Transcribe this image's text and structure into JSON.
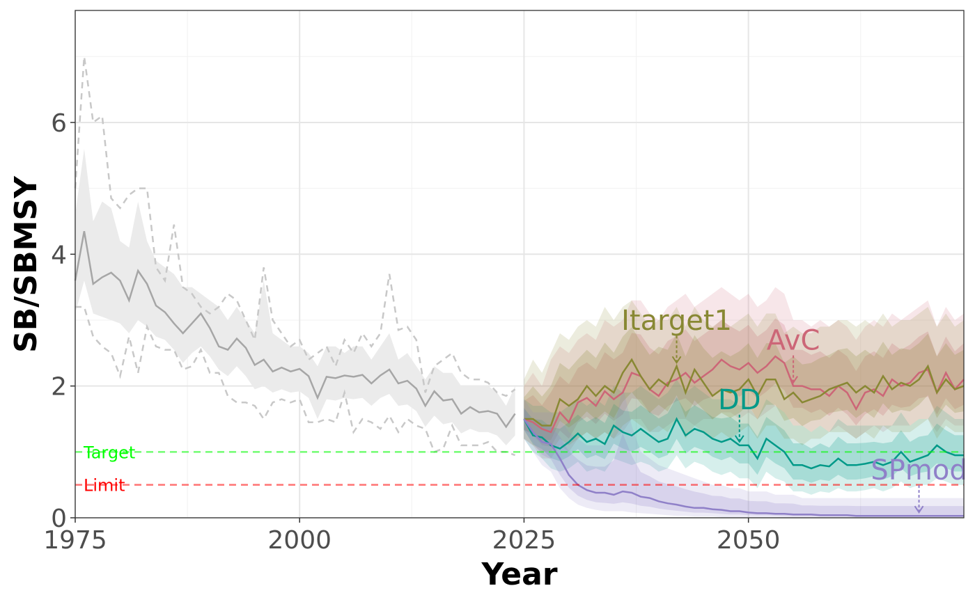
{
  "chart_data": {
    "type": "line",
    "xlabel": "Year",
    "ylabel": "SB/SBMSY",
    "xlim": [
      1975,
      2074
    ],
    "ylim": [
      0,
      7.7
    ],
    "x_ticks": [
      1975,
      2000,
      2025,
      2050
    ],
    "y_ticks": [
      0,
      2,
      4,
      6
    ],
    "grid": true,
    "legend": "none",
    "reference_lines": [
      {
        "name": "Target",
        "y": 1.0,
        "color": "#00ff00"
      },
      {
        "name": "Limit",
        "y": 0.5,
        "color": "#ff0000"
      }
    ],
    "historical": {
      "color": "#a6a6a6",
      "x": [
        1975,
        1976,
        1977,
        1978,
        1979,
        1980,
        1981,
        1982,
        1983,
        1984,
        1985,
        1986,
        1987,
        1988,
        1989,
        1990,
        1991,
        1992,
        1993,
        1994,
        1995,
        1996,
        1997,
        1998,
        1999,
        2000,
        2001,
        2002,
        2003,
        2004,
        2005,
        2006,
        2007,
        2008,
        2009,
        2010,
        2011,
        2012,
        2013,
        2014,
        2015,
        2016,
        2017,
        2018,
        2019,
        2020,
        2021,
        2022,
        2023,
        2024
      ],
      "median": [
        3.6,
        4.35,
        3.55,
        3.65,
        3.72,
        3.6,
        3.3,
        3.75,
        3.55,
        3.22,
        3.12,
        2.95,
        2.8,
        2.95,
        3.1,
        2.88,
        2.6,
        2.55,
        2.72,
        2.58,
        2.32,
        2.4,
        2.22,
        2.28,
        2.22,
        2.26,
        2.15,
        1.82,
        2.14,
        2.12,
        2.16,
        2.14,
        2.17,
        2.04,
        2.16,
        2.25,
        2.04,
        2.08,
        1.96,
        1.7,
        1.92,
        1.78,
        1.8,
        1.58,
        1.68,
        1.6,
        1.62,
        1.58,
        1.38,
        1.58
      ],
      "upper": [
        4.6,
        5.6,
        4.5,
        4.8,
        4.7,
        4.2,
        4.1,
        4.8,
        4.2,
        3.9,
        3.8,
        3.7,
        3.5,
        3.5,
        3.4,
        3.3,
        3.2,
        3.0,
        3.2,
        3.0,
        2.8,
        3.6,
        2.8,
        2.7,
        2.6,
        2.6,
        2.5,
        2.3,
        2.6,
        2.6,
        2.5,
        2.6,
        2.6,
        2.4,
        2.6,
        2.8,
        2.4,
        2.5,
        2.3,
        2.1,
        2.3,
        2.2,
        2.2,
        2.0,
        2.0,
        2.0,
        2.0,
        1.9,
        1.7,
        2.0
      ],
      "lower": [
        3.1,
        3.6,
        3.1,
        3.05,
        3.0,
        2.95,
        2.8,
        3.0,
        2.9,
        2.75,
        2.7,
        2.55,
        2.35,
        2.5,
        2.6,
        2.45,
        2.25,
        2.15,
        2.3,
        2.15,
        1.95,
        2.0,
        1.9,
        1.95,
        1.9,
        1.92,
        1.82,
        1.5,
        1.8,
        1.78,
        1.82,
        1.8,
        1.82,
        1.7,
        1.82,
        1.88,
        1.7,
        1.72,
        1.62,
        1.38,
        1.55,
        1.42,
        1.45,
        1.28,
        1.35,
        1.3,
        1.3,
        1.25,
        1.1,
        1.25
      ],
      "trace_upper": [
        5.0,
        7.0,
        6.0,
        6.1,
        4.85,
        4.7,
        4.9,
        5.0,
        5.0,
        3.8,
        3.6,
        4.45,
        3.5,
        3.4,
        3.2,
        3.1,
        3.2,
        3.4,
        3.3,
        3.0,
        2.7,
        3.8,
        3.0,
        2.8,
        2.6,
        2.7,
        2.4,
        2.5,
        2.6,
        2.3,
        2.7,
        2.5,
        2.8,
        2.6,
        2.8,
        3.7,
        2.85,
        2.9,
        2.7,
        1.9,
        2.3,
        2.4,
        2.5,
        2.2,
        2.1,
        2.1,
        2.05,
        1.9,
        1.85,
        1.95
      ],
      "trace_lower": [
        3.2,
        3.2,
        2.75,
        2.6,
        2.5,
        2.15,
        2.75,
        2.2,
        2.9,
        2.6,
        2.55,
        2.55,
        2.25,
        2.3,
        2.55,
        2.2,
        2.2,
        1.85,
        1.75,
        1.75,
        1.7,
        1.5,
        1.75,
        1.8,
        1.75,
        1.8,
        1.45,
        1.45,
        1.5,
        1.45,
        1.9,
        1.3,
        1.5,
        1.45,
        1.35,
        1.55,
        1.3,
        1.5,
        1.4,
        1.35,
        1.0,
        1.05,
        1.4,
        1.1,
        1.1,
        1.1,
        1.15,
        1.0,
        1.0,
        0.95
      ]
    },
    "series": [
      {
        "name": "AvC",
        "color": "#cc6677",
        "label_at": 2055,
        "x": [
          2025,
          2026,
          2027,
          2028,
          2029,
          2030,
          2031,
          2032,
          2033,
          2034,
          2035,
          2036,
          2037,
          2038,
          2039,
          2040,
          2041,
          2042,
          2043,
          2044,
          2045,
          2046,
          2047,
          2048,
          2049,
          2050,
          2051,
          2052,
          2053,
          2054,
          2055,
          2056,
          2057,
          2058,
          2059,
          2060,
          2061,
          2062,
          2063,
          2064,
          2065,
          2066,
          2067,
          2068,
          2069,
          2070,
          2071,
          2072,
          2073,
          2074
        ],
        "median": [
          1.5,
          1.45,
          1.35,
          1.3,
          1.6,
          1.45,
          1.75,
          1.82,
          1.7,
          1.92,
          1.8,
          1.9,
          2.2,
          2.15,
          1.95,
          1.85,
          2.05,
          2.1,
          2.2,
          2.05,
          2.15,
          2.25,
          2.4,
          2.3,
          2.25,
          2.35,
          2.2,
          2.3,
          2.45,
          2.35,
          2.0,
          2.0,
          1.95,
          1.95,
          1.85,
          2.0,
          1.9,
          1.65,
          1.9,
          1.95,
          1.85,
          2.1,
          2.0,
          2.05,
          2.2,
          2.25,
          1.9,
          2.2,
          1.95,
          2.1
        ],
        "upper": [
          2.0,
          2.2,
          2.0,
          2.4,
          2.6,
          2.5,
          2.7,
          2.8,
          2.7,
          3.0,
          2.9,
          3.0,
          3.3,
          3.3,
          3.1,
          3.0,
          3.2,
          3.3,
          3.4,
          3.2,
          3.3,
          3.4,
          3.5,
          3.4,
          3.3,
          3.4,
          3.2,
          3.3,
          3.5,
          3.4,
          3.0,
          3.0,
          2.9,
          3.0,
          2.9,
          3.0,
          2.9,
          2.7,
          2.9,
          3.0,
          2.9,
          3.1,
          3.0,
          3.1,
          3.2,
          3.3,
          2.9,
          3.2,
          3.0,
          3.1
        ],
        "lower": [
          1.2,
          1.1,
          0.9,
          0.9,
          1.1,
          1.0,
          1.2,
          1.3,
          1.2,
          1.3,
          1.2,
          1.3,
          1.5,
          1.5,
          1.3,
          1.3,
          1.4,
          1.5,
          1.5,
          1.4,
          1.5,
          1.5,
          1.6,
          1.6,
          1.5,
          1.6,
          1.5,
          1.6,
          1.7,
          1.6,
          1.4,
          1.4,
          1.3,
          1.4,
          1.3,
          1.4,
          1.3,
          1.2,
          1.3,
          1.4,
          1.3,
          1.4,
          1.4,
          1.4,
          1.5,
          1.5,
          1.3,
          1.5,
          1.4,
          1.4
        ]
      },
      {
        "name": "DD",
        "color": "#009988",
        "label_at": 2049,
        "x": [
          2025,
          2026,
          2027,
          2028,
          2029,
          2030,
          2031,
          2032,
          2033,
          2034,
          2035,
          2036,
          2037,
          2038,
          2039,
          2040,
          2041,
          2042,
          2043,
          2044,
          2045,
          2046,
          2047,
          2048,
          2049,
          2050,
          2051,
          2052,
          2053,
          2054,
          2055,
          2056,
          2057,
          2058,
          2059,
          2060,
          2061,
          2062,
          2063,
          2064,
          2065,
          2066,
          2067,
          2068,
          2069,
          2070,
          2071,
          2072,
          2073,
          2074
        ],
        "median": [
          1.5,
          1.25,
          1.22,
          1.1,
          1.05,
          1.15,
          1.28,
          1.15,
          1.2,
          1.12,
          1.4,
          1.3,
          1.25,
          1.35,
          1.25,
          1.15,
          1.2,
          1.5,
          1.25,
          1.35,
          1.3,
          1.2,
          1.15,
          1.2,
          1.1,
          1.1,
          0.9,
          1.2,
          1.1,
          1.0,
          0.8,
          0.8,
          0.75,
          0.8,
          0.78,
          0.9,
          0.8,
          0.8,
          0.82,
          0.85,
          0.8,
          0.85,
          1.0,
          0.85,
          0.9,
          0.95,
          1.1,
          1.0,
          0.95,
          0.95
        ],
        "upper": [
          1.8,
          1.7,
          1.7,
          1.6,
          1.6,
          1.7,
          1.8,
          1.7,
          1.8,
          1.7,
          2.0,
          1.9,
          1.9,
          2.0,
          1.9,
          1.8,
          1.9,
          2.1,
          1.9,
          2.0,
          1.9,
          1.8,
          1.8,
          1.8,
          1.7,
          1.7,
          1.5,
          1.8,
          1.7,
          1.6,
          1.4,
          1.4,
          1.3,
          1.4,
          1.3,
          1.5,
          1.4,
          1.4,
          1.4,
          1.4,
          1.4,
          1.4,
          1.6,
          1.4,
          1.5,
          1.5,
          1.7,
          1.6,
          1.5,
          1.5
        ],
        "lower": [
          1.2,
          1.0,
          0.9,
          0.75,
          0.7,
          0.75,
          0.85,
          0.7,
          0.75,
          0.7,
          0.9,
          0.85,
          0.8,
          0.85,
          0.8,
          0.7,
          0.75,
          0.95,
          0.75,
          0.85,
          0.8,
          0.7,
          0.65,
          0.7,
          0.6,
          0.6,
          0.45,
          0.7,
          0.6,
          0.55,
          0.4,
          0.4,
          0.35,
          0.4,
          0.38,
          0.45,
          0.4,
          0.4,
          0.42,
          0.45,
          0.4,
          0.45,
          0.55,
          0.45,
          0.5,
          0.5,
          0.6,
          0.55,
          0.5,
          0.5
        ]
      },
      {
        "name": "Itarget1",
        "color": "#888833",
        "label_at": 2042,
        "x": [
          2025,
          2026,
          2027,
          2028,
          2029,
          2030,
          2031,
          2032,
          2033,
          2034,
          2035,
          2036,
          2037,
          2038,
          2039,
          2040,
          2041,
          2042,
          2043,
          2044,
          2045,
          2046,
          2047,
          2048,
          2049,
          2050,
          2051,
          2052,
          2053,
          2054,
          2055,
          2056,
          2057,
          2058,
          2059,
          2060,
          2061,
          2062,
          2063,
          2064,
          2065,
          2066,
          2067,
          2068,
          2069,
          2070,
          2071,
          2072,
          2073,
          2074
        ],
        "median": [
          1.5,
          1.5,
          1.4,
          1.4,
          1.8,
          1.7,
          1.8,
          2.0,
          1.85,
          2.0,
          1.9,
          2.2,
          2.4,
          2.15,
          1.95,
          2.1,
          2.0,
          2.3,
          1.9,
          2.25,
          2.05,
          1.85,
          1.95,
          1.9,
          1.95,
          2.1,
          1.85,
          2.1,
          2.1,
          1.8,
          1.9,
          1.75,
          1.8,
          1.85,
          1.95,
          2.0,
          2.05,
          1.9,
          2.0,
          1.9,
          2.15,
          1.95,
          2.05,
          2.0,
          2.1,
          2.3,
          1.9,
          2.1,
          1.95,
          2.0
        ],
        "upper": [
          2.1,
          2.4,
          2.2,
          2.5,
          2.8,
          2.7,
          2.9,
          3.0,
          2.9,
          3.2,
          3.0,
          3.2,
          3.3,
          3.1,
          2.9,
          3.0,
          3.0,
          3.2,
          2.9,
          3.2,
          3.0,
          2.9,
          3.0,
          2.9,
          3.0,
          3.1,
          2.9,
          3.1,
          3.1,
          2.8,
          2.9,
          2.8,
          2.8,
          2.9,
          2.9,
          3.0,
          3.0,
          2.9,
          3.0,
          2.9,
          3.1,
          2.9,
          3.0,
          3.0,
          3.1,
          3.2,
          2.9,
          3.1,
          2.9,
          3.0
        ],
        "lower": [
          1.2,
          1.1,
          1.0,
          1.0,
          1.2,
          1.1,
          1.2,
          1.3,
          1.2,
          1.3,
          1.2,
          1.4,
          1.5,
          1.4,
          1.3,
          1.4,
          1.3,
          1.5,
          1.2,
          1.4,
          1.3,
          1.2,
          1.3,
          1.2,
          1.3,
          1.4,
          1.2,
          1.4,
          1.4,
          1.2,
          1.2,
          1.1,
          1.2,
          1.2,
          1.3,
          1.3,
          1.3,
          1.2,
          1.3,
          1.2,
          1.4,
          1.3,
          1.3,
          1.3,
          1.4,
          1.5,
          1.2,
          1.4,
          1.3,
          1.3
        ]
      },
      {
        "name": "SPmod",
        "color": "#8f80c8",
        "label_at": 2069,
        "x": [
          2025,
          2026,
          2027,
          2028,
          2029,
          2030,
          2031,
          2032,
          2033,
          2034,
          2035,
          2036,
          2037,
          2038,
          2039,
          2040,
          2041,
          2042,
          2043,
          2044,
          2045,
          2046,
          2047,
          2048,
          2049,
          2050,
          2051,
          2052,
          2053,
          2054,
          2055,
          2056,
          2057,
          2058,
          2059,
          2060,
          2061,
          2062,
          2063,
          2064,
          2065,
          2066,
          2067,
          2068,
          2069,
          2070,
          2071,
          2072,
          2073,
          2074
        ],
        "median": [
          1.5,
          1.3,
          1.15,
          1.12,
          0.9,
          0.65,
          0.5,
          0.42,
          0.38,
          0.38,
          0.35,
          0.4,
          0.38,
          0.32,
          0.3,
          0.25,
          0.22,
          0.2,
          0.17,
          0.15,
          0.15,
          0.13,
          0.12,
          0.1,
          0.1,
          0.08,
          0.07,
          0.07,
          0.06,
          0.06,
          0.05,
          0.05,
          0.05,
          0.04,
          0.04,
          0.04,
          0.04,
          0.03,
          0.03,
          0.03,
          0.03,
          0.03,
          0.03,
          0.03,
          0.03,
          0.03,
          0.03,
          0.03,
          0.03,
          0.03
        ],
        "upper": [
          1.8,
          1.6,
          1.6,
          1.6,
          1.5,
          1.3,
          1.2,
          1.1,
          1.1,
          1.1,
          1.3,
          2.0,
          1.4,
          1.0,
          0.9,
          0.8,
          0.75,
          0.7,
          0.65,
          0.6,
          0.55,
          0.5,
          0.5,
          0.45,
          0.45,
          0.4,
          0.4,
          0.4,
          0.35,
          0.35,
          0.35,
          0.3,
          0.3,
          0.3,
          0.3,
          0.3,
          0.3,
          0.3,
          0.3,
          0.3,
          0.3,
          0.3,
          0.3,
          0.3,
          0.3,
          0.3,
          0.3,
          0.3,
          0.3,
          0.3
        ],
        "lower": [
          1.2,
          1.0,
          0.8,
          0.7,
          0.45,
          0.3,
          0.2,
          0.15,
          0.12,
          0.1,
          0.1,
          0.1,
          0.08,
          0.07,
          0.06,
          0.05,
          0.04,
          0.03,
          0.03,
          0.02,
          0.02,
          0.02,
          0.01,
          0.01,
          0.01,
          0.01,
          0.01,
          0.01,
          0.01,
          0.0,
          0.0,
          0.0,
          0.0,
          0.0,
          0.0,
          0.0,
          0.0,
          0.0,
          0.0,
          0.0,
          0.0,
          0.0,
          0.0,
          0.0,
          0.0,
          0.0,
          0.0,
          0.0,
          0.0,
          0.0
        ]
      }
    ]
  }
}
